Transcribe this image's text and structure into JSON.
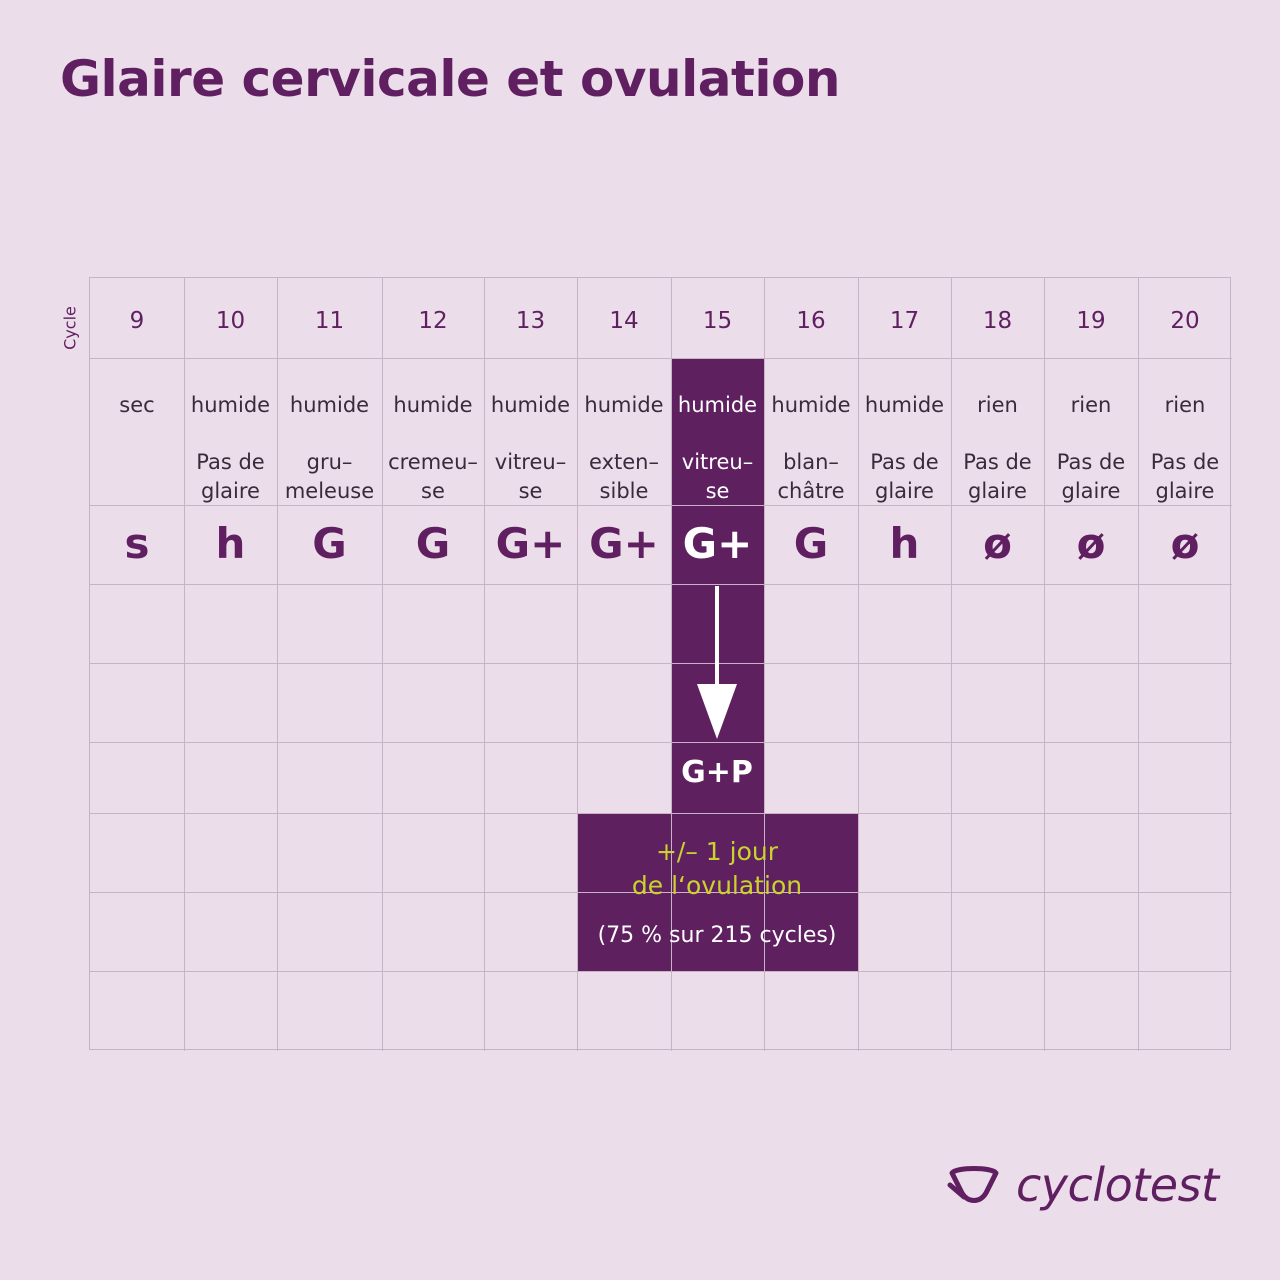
{
  "title": "Glaire cervicale et ovulation",
  "cycle_label": "Cycle",
  "colors": {
    "accent": "#5f2060",
    "highlight_text": "#c9d32c",
    "background": "#ebdde9",
    "grid": "#c6b3c4"
  },
  "days": [
    {
      "num": "9",
      "sensation": "sec",
      "aspect": [
        "",
        ""
      ],
      "symbol": "s"
    },
    {
      "num": "10",
      "sensation": "humide",
      "aspect": [
        "Pas de",
        "glaire"
      ],
      "symbol": "h"
    },
    {
      "num": "11",
      "sensation": "humide",
      "aspect": [
        "gru–",
        "meleuse"
      ],
      "symbol": "G"
    },
    {
      "num": "12",
      "sensation": "humide",
      "aspect": [
        "cremeu–",
        "se"
      ],
      "symbol": "G"
    },
    {
      "num": "13",
      "sensation": "humide",
      "aspect": [
        "vitreu–",
        "se"
      ],
      "symbol": "G+"
    },
    {
      "num": "14",
      "sensation": "humide",
      "aspect": [
        "exten–",
        "sible"
      ],
      "symbol": "G+"
    },
    {
      "num": "15",
      "sensation": "humide",
      "aspect": [
        "vitreu–",
        "se"
      ],
      "symbol": "G+"
    },
    {
      "num": "16",
      "sensation": "humide",
      "aspect": [
        "blan–",
        "châtre"
      ],
      "symbol": "G"
    },
    {
      "num": "17",
      "sensation": "humide",
      "aspect": [
        "Pas de",
        "glaire"
      ],
      "symbol": "h"
    },
    {
      "num": "18",
      "sensation": "rien",
      "aspect": [
        "Pas de",
        "glaire"
      ],
      "symbol": "ø"
    },
    {
      "num": "19",
      "sensation": "rien",
      "aspect": [
        "Pas de",
        "glaire"
      ],
      "symbol": "ø"
    },
    {
      "num": "20",
      "sensation": "rien",
      "aspect": [
        "Pas de",
        "glaire"
      ],
      "symbol": "ø"
    }
  ],
  "peak_day": "15",
  "peak_label": "G+P",
  "ovulation": {
    "line1": "+/– 1 jour",
    "line2": "de l‘ovulation",
    "note": "(75 % sur 215 cycles)"
  },
  "brand": {
    "name": "cyclotest",
    "logo_icon": "cyclotest-logo-icon"
  }
}
